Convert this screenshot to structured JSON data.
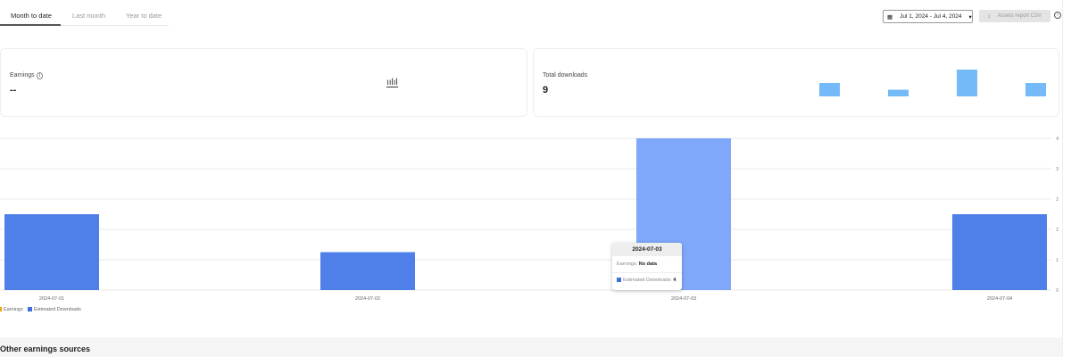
{
  "tabs": [
    {
      "label": "Month to date",
      "active": true
    },
    {
      "label": "Last month"
    },
    {
      "label": "Year to date"
    }
  ],
  "toolbar": {
    "date_range": "Jul 1, 2024 - Jul 4, 2024",
    "csv_label": "Assets report CSV",
    "calendar_icon": "calendar-icon",
    "download_icon": "download-icon",
    "info_icon": "info-icon"
  },
  "cards": {
    "earnings": {
      "label": "Earnings",
      "value": "--",
      "icon": "bar-chart-icon"
    },
    "downloads": {
      "label": "Total downloads",
      "value": "9"
    }
  },
  "tooltip": {
    "date": "2024-07-03",
    "earnings_label": "Earnings:",
    "earnings_value": "No data",
    "downloads_label": "Estimated Downloads:",
    "downloads_value": "4"
  },
  "footer": {
    "title": "Other earnings sources"
  },
  "colors": {
    "downloads": "#4f7fe8",
    "highlight": "#7fa7fa",
    "mini": "#74baf8",
    "earnings": "#f2a20c"
  },
  "chart_data": {
    "type": "bar",
    "categories": [
      "2024-07-01",
      "2024-07-02",
      "2024-07-03",
      "2024-07-04"
    ],
    "series": [
      {
        "name": "Estimated Downloads",
        "values": [
          2,
          1,
          4,
          2
        ]
      },
      {
        "name": "Earnings",
        "values": [
          null,
          null,
          null,
          null
        ]
      }
    ],
    "yticks": [
      "0",
      "1",
      "2",
      "2",
      "3",
      "4"
    ],
    "ylim": [
      0,
      4
    ],
    "grid": true,
    "legend": "bottom-left",
    "legend_entries": [
      "Earnings",
      "Estimated Downloads"
    ],
    "highlighted": "2024-07-03"
  }
}
